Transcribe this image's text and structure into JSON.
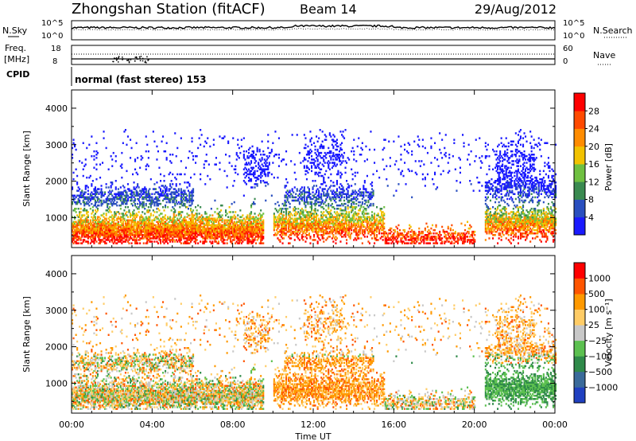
{
  "header": {
    "title": "Zhongshan Station (fitACF)",
    "beam": "Beam 14",
    "date": "29/Aug/2012"
  },
  "top_panels": {
    "nsky_label": "N.Sky",
    "nsearch_label": "N.Search",
    "noise_ticks": [
      "10^5",
      "10^0"
    ],
    "freq_label_1": "Freq.",
    "freq_label_2": "[MHz]",
    "freq_ticks": [
      "18",
      "8"
    ],
    "nave_label": "Nave",
    "nave_ticks": [
      "60",
      "0"
    ],
    "cpid_label": "CPID",
    "cpid_text": "normal (fast stereo) 153"
  },
  "x_axis": {
    "label": "Time UT",
    "ticks": [
      "00:00",
      "04:00",
      "08:00",
      "12:00",
      "16:00",
      "20:00",
      "00:00"
    ]
  },
  "chart_data": [
    {
      "type": "heatmap",
      "panel": "power",
      "x": "time UT (hours)",
      "xlim": [
        0,
        24
      ],
      "ylabel": "Slant Range [km]",
      "ylim": [
        180,
        4500
      ],
      "yticks": [
        "1000",
        "2000",
        "3000",
        "4000"
      ],
      "ytick_values": [
        1000,
        2000,
        3000,
        4000
      ],
      "colorbar_label": "Power [dB]",
      "colorbar_ticks": [
        "4",
        "8",
        "12",
        "16",
        "20",
        "24",
        "28"
      ],
      "colorbar_colors": [
        "#1a1aff",
        "#2a4fbf",
        "#3a8a50",
        "#6fc040",
        "#f2c200",
        "#ff8c00",
        "#ff4a00",
        "#ff0000"
      ],
      "colorbar_range": [
        0,
        30
      ]
    },
    {
      "type": "heatmap",
      "panel": "velocity",
      "x": "time UT (hours)",
      "xlim": [
        0,
        24
      ],
      "ylabel": "Slant Range [km]",
      "ylim": [
        180,
        4500
      ],
      "yticks": [
        "1000",
        "2000",
        "3000",
        "4000"
      ],
      "ytick_values": [
        1000,
        2000,
        3000,
        4000
      ],
      "colorbar_label": "Velocity [m s⁻¹]",
      "colorbar_ticks": [
        "1000",
        "500",
        "100",
        "25",
        "−25",
        "−100",
        "−500",
        "−1000"
      ],
      "colorbar_colors": [
        "#2040c0",
        "#3a6a9a",
        "#2f8a4a",
        "#5cc050",
        "#c8c8c8",
        "#ffcc66",
        "#ff9900",
        "#ff5500",
        "#ff0000"
      ]
    }
  ]
}
